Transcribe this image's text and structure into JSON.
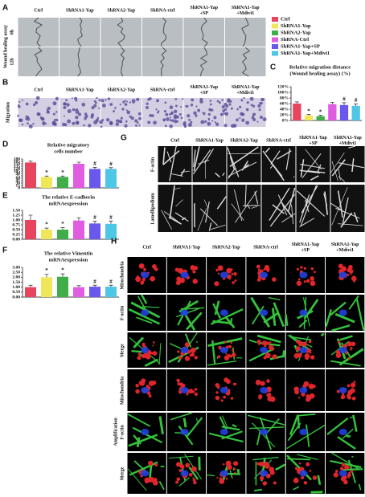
{
  "panels": {
    "A": {
      "label": "A",
      "headers": [
        [
          "Ctrl"
        ],
        [
          "ShRNA1-Yap"
        ],
        [
          "ShRNA2-Yap"
        ],
        [
          "ShRNA-ctrl"
        ],
        [
          "ShRNA1-Yap",
          "+SP"
        ],
        [
          "ShRNA1-Yap",
          "+Mdivi1"
        ]
      ],
      "row_title": "Wound healing assay",
      "rows": [
        "0h",
        "12h"
      ]
    },
    "B": {
      "label": "B",
      "headers": [
        [
          "Ctrl"
        ],
        [
          "ShRNA1-Yap"
        ],
        [
          "ShRNA2-Yap"
        ],
        [
          "ShRNA-ctrl"
        ],
        [
          "ShRNA1-Yap",
          "+SP"
        ],
        [
          "ShRNA1-Yap",
          "+Mdivi1"
        ]
      ],
      "row_title": "Migration"
    },
    "G": {
      "label": "G",
      "headers": [
        [
          "Ctrl"
        ],
        [
          "ShRNA1-Yap"
        ],
        [
          "ShRNA2-Yap"
        ],
        [
          "ShRNA-ctrl"
        ],
        [
          "ShRNA1-Yap",
          "+SP"
        ],
        [
          "ShRNA1-Yap",
          "+Mdivi1"
        ]
      ],
      "rows": [
        "F-actin",
        "Lamellipodium"
      ]
    },
    "H": {
      "label": "H",
      "headers": [
        [
          "Ctrl"
        ],
        [
          "ShRNA1-Yap"
        ],
        [
          "ShRNA2-Yap"
        ],
        [
          "ShRNA-ctrl"
        ],
        [
          "ShRNA1-Yap",
          "+SP"
        ],
        [
          "ShRNA1-Yap",
          "+Mdivi1"
        ]
      ],
      "rows": [
        "Mitochondria",
        "F-actin",
        "Merge",
        "Mitochondria",
        "F-actin",
        "Merge"
      ],
      "group_label": "Amplification"
    }
  },
  "legend": {
    "names": [
      "Ctrl",
      "ShRNA1-Yap",
      "ShRNA2-Yap",
      "ShRNA-Ctrl",
      "ShRNA1-Yap+SP",
      "ShRNA1-Yap+Mdivi1"
    ],
    "colors": [
      "#e8445e",
      "#efe65a",
      "#3fae49",
      "#e05ce0",
      "#6a58ee",
      "#4ec6e6"
    ]
  },
  "chart_data": [
    {
      "type": "bar",
      "label": "C",
      "title": [
        "Relative migration distance",
        "(Wound healing assay) (%)"
      ],
      "values": [
        60,
        18,
        15,
        58,
        55,
        52
      ],
      "errors": [
        6,
        3,
        3,
        7,
        8,
        7
      ],
      "annotations": [
        null,
        "*",
        "*",
        null,
        "#",
        "#"
      ],
      "ylim": [
        0,
        120
      ],
      "yticks": [
        {
          "value": 0,
          "label": "0%"
        },
        {
          "value": 20,
          "label": "20%"
        },
        {
          "value": 40,
          "label": "40%"
        },
        {
          "value": 60,
          "label": "60%"
        },
        {
          "value": 80,
          "label": "80%"
        },
        {
          "value": 100,
          "label": "100%"
        },
        {
          "value": 120,
          "label": "120%"
        }
      ]
    },
    {
      "type": "bar",
      "label": "D",
      "title": [
        "Relative migratory",
        "cells number"
      ],
      "values": [
        158,
        68,
        68,
        150,
        118,
        118
      ],
      "errors": [
        8,
        6,
        6,
        10,
        10,
        8
      ],
      "annotations": [
        null,
        "*",
        "*",
        null,
        "#",
        "#"
      ],
      "ylim": [
        0,
        180
      ],
      "yticks": [
        0,
        15,
        30,
        45,
        60,
        75,
        90,
        105,
        120,
        135,
        150,
        165,
        180
      ]
    },
    {
      "type": "bar",
      "label": "E",
      "title": [
        "The relative E-cadherin",
        "mRNAexpression"
      ],
      "values": [
        1.0,
        0.5,
        0.5,
        0.97,
        0.82,
        0.8
      ],
      "errors": [
        0.25,
        0.08,
        0.1,
        0.15,
        0.12,
        0.15
      ],
      "annotations": [
        null,
        "*",
        "*",
        null,
        "#",
        "#"
      ],
      "ylim": [
        0,
        1.5
      ],
      "yticks": [
        {
          "value": 0,
          "label": "0.00"
        },
        {
          "value": 0.25,
          "label": "0.25"
        },
        {
          "value": 0.5,
          "label": "0.50"
        },
        {
          "value": 0.75,
          "label": "0.75"
        },
        {
          "value": 1,
          "label": "1.00"
        },
        {
          "value": 1.25,
          "label": "1.25"
        },
        {
          "value": 1.5,
          "label": "1.50"
        }
      ]
    },
    {
      "type": "bar",
      "label": "F",
      "title": [
        "The relative Vimentin",
        "mRNAexpression"
      ],
      "values": [
        1.0,
        2.0,
        2.05,
        1.0,
        1.05,
        1.05
      ],
      "errors": [
        0.2,
        0.3,
        0.3,
        0.15,
        0.15,
        0.15
      ],
      "annotations": [
        null,
        "*",
        "*",
        null,
        "#",
        "#"
      ],
      "ylim": [
        0,
        3
      ],
      "yticks": [
        {
          "value": 0,
          "label": "0.00"
        },
        {
          "value": 0.5,
          "label": "0.50"
        },
        {
          "value": 1,
          "label": "1.00"
        },
        {
          "value": 1.5,
          "label": "1.50"
        },
        {
          "value": 2,
          "label": "2.00"
        },
        {
          "value": 2.5,
          "label": "2.50"
        },
        {
          "value": 3,
          "label": "3.00"
        }
      ]
    }
  ]
}
